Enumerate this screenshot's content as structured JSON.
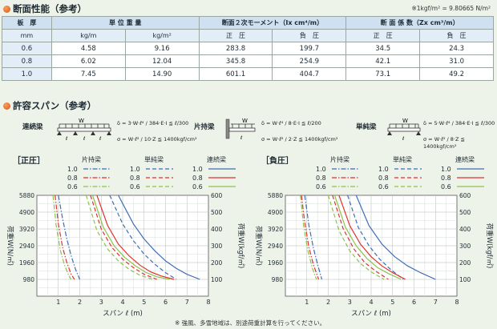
{
  "section1": {
    "title": "断面性能（参考）",
    "note": "※1kgf/m² = 9.80665 N/m²"
  },
  "table": {
    "headers": [
      "板　厚",
      "単 位 重 量",
      "断面２次モーメント（Ix cm⁴/m）",
      "断 面 係 数（Zx cm³/m）"
    ],
    "units": [
      "mm",
      "kg/m",
      "kg/m²",
      "正　圧",
      "負　圧",
      "正　圧",
      "負　圧"
    ],
    "rows": [
      [
        "0.6",
        "4.58",
        "9.16",
        "283.8",
        "199.7",
        "34.5",
        "24.3"
      ],
      [
        "0.8",
        "6.02",
        "12.04",
        "345.8",
        "254.9",
        "42.1",
        "31.0"
      ],
      [
        "1.0",
        "7.45",
        "14.90",
        "601.1",
        "404.7",
        "73.1",
        "49.2"
      ]
    ]
  },
  "section2": {
    "title": "許容スパン（参考）"
  },
  "formulas": {
    "renzoku": {
      "label": "連続梁",
      "f1": "δ = 3·W·ℓ⁴ / 384·E·I ≦ ℓ/300",
      "f2": "σ = W·ℓ² / 10·Z ≦ 1400kgf/cm²",
      "w": "W",
      "l": "ℓ"
    },
    "katamochi": {
      "label": "片持梁",
      "f1": "δ = W·ℓ⁴ / 8·E·I ≦ ℓ/200",
      "f2": "σ = W·ℓ² / 2·Z ≦ 1400kgf/cm²",
      "w": "W",
      "l": "ℓ"
    },
    "tanjun": {
      "label": "単純梁",
      "f1": "δ = 5·W·ℓ⁴ / 384·E·I ≦ ℓ/300",
      "f2": "σ = W·ℓ² / 8·Z ≦ 1400kgf/cm²",
      "w": "W",
      "l": "ℓ"
    }
  },
  "legend": {
    "katamochi": "片持梁",
    "tanjun": "単純梁",
    "renzoku": "連続梁",
    "thicknesses": [
      "1.0",
      "0.8",
      "0.6"
    ]
  },
  "colors": {
    "t10": "#3f6db5",
    "t08": "#e03030",
    "t06": "#8bc34a",
    "axis": "#1e2a33"
  },
  "footnote": "※ 強風、多雪地域は、別途荷重計算を行ってください。",
  "chart_data": [
    {
      "type": "line",
      "title": "［正圧］",
      "xlabel": "スパン ℓ (m)",
      "ylabel_left": "荷重W(N/㎡)",
      "ylabel_right": "荷重W(kgf/㎡)",
      "xlim": [
        0,
        8
      ],
      "ylim": [
        0,
        600
      ],
      "x_ticks": [
        1,
        2,
        3,
        4,
        5,
        6,
        7,
        8
      ],
      "y_ticks_left": [
        "980",
        "1960",
        "2940",
        "3920",
        "4900",
        "5880"
      ],
      "y_ticks_right": [
        "100",
        "200",
        "300",
        "400",
        "500",
        "600"
      ],
      "series": [
        {
          "name": "片持梁 1.0",
          "style": "dashdot",
          "color": "#3f6db5",
          "x": [
            1.0,
            1.2,
            1.4,
            1.6,
            1.8,
            2.0
          ],
          "y": [
            600,
            460,
            340,
            240,
            160,
            100
          ]
        },
        {
          "name": "片持梁 0.8",
          "style": "dashdot",
          "color": "#e03030",
          "x": [
            0.85,
            1.0,
            1.2,
            1.4,
            1.6,
            1.75
          ],
          "y": [
            600,
            430,
            290,
            200,
            130,
            100
          ]
        },
        {
          "name": "片持梁 0.6",
          "style": "dashdot",
          "color": "#8bc34a",
          "x": [
            0.75,
            0.9,
            1.1,
            1.3,
            1.5,
            1.6
          ],
          "y": [
            600,
            420,
            270,
            180,
            120,
            100
          ]
        },
        {
          "name": "単純梁 1.0",
          "style": "dashed",
          "color": "#3f6db5",
          "x": [
            3.4,
            4.0,
            4.5,
            5.0,
            5.5,
            6.0,
            6.5
          ],
          "y": [
            600,
            430,
            330,
            250,
            190,
            140,
            100
          ]
        },
        {
          "name": "単純梁 0.8",
          "style": "dashed",
          "color": "#e03030",
          "x": [
            2.5,
            3.0,
            3.5,
            4.0,
            4.5,
            5.0,
            5.6
          ],
          "y": [
            600,
            400,
            290,
            220,
            170,
            130,
            100
          ]
        },
        {
          "name": "単純梁 0.6",
          "style": "dashed",
          "color": "#8bc34a",
          "x": [
            2.3,
            2.8,
            3.3,
            3.8,
            4.3,
            4.8,
            5.4
          ],
          "y": [
            600,
            390,
            280,
            210,
            160,
            125,
            100
          ]
        },
        {
          "name": "連続梁 1.0",
          "style": "solid",
          "color": "#3f6db5",
          "x": [
            3.8,
            4.5,
            5.0,
            5.5,
            6.0,
            6.5,
            7.0,
            7.6
          ],
          "y": [
            600,
            430,
            340,
            270,
            210,
            165,
            130,
            100
          ]
        },
        {
          "name": "連続梁 0.8",
          "style": "solid",
          "color": "#e03030",
          "x": [
            2.8,
            3.3,
            3.8,
            4.3,
            4.8,
            5.3,
            5.8,
            6.4
          ],
          "y": [
            600,
            420,
            310,
            240,
            185,
            145,
            120,
            100
          ]
        },
        {
          "name": "連続梁 0.6",
          "style": "solid",
          "color": "#8bc34a",
          "x": [
            2.6,
            3.1,
            3.6,
            4.1,
            4.6,
            5.1,
            5.6,
            6.2
          ],
          "y": [
            600,
            410,
            300,
            230,
            180,
            140,
            115,
            100
          ]
        }
      ]
    },
    {
      "type": "line",
      "title": "［負圧］",
      "xlabel": "スパン ℓ (m)",
      "ylabel_left": "荷重W(N/㎡)",
      "ylabel_right": "荷重W(kgf/㎡)",
      "xlim": [
        0,
        8
      ],
      "ylim": [
        0,
        600
      ],
      "x_ticks": [
        1,
        2,
        3,
        4,
        5,
        6,
        7,
        8
      ],
      "y_ticks_left": [
        "980",
        "1960",
        "2940",
        "3920",
        "4900",
        "5880"
      ],
      "y_ticks_right": [
        "100",
        "200",
        "300",
        "400",
        "500",
        "600"
      ],
      "series": [
        {
          "name": "片持梁 1.0",
          "style": "dashdot",
          "color": "#3f6db5",
          "x": [
            0.9,
            1.1,
            1.3,
            1.5,
            1.7
          ],
          "y": [
            600,
            420,
            290,
            190,
            100
          ]
        },
        {
          "name": "片持梁 0.8",
          "style": "dashdot",
          "color": "#e03030",
          "x": [
            0.75,
            0.9,
            1.1,
            1.3,
            1.55
          ],
          "y": [
            600,
            440,
            290,
            190,
            100
          ]
        },
        {
          "name": "片持梁 0.6",
          "style": "dashdot",
          "color": "#8bc34a",
          "x": [
            0.7,
            0.85,
            1.05,
            1.25,
            1.45
          ],
          "y": [
            600,
            420,
            270,
            170,
            100
          ]
        },
        {
          "name": "単純梁 1.0",
          "style": "dashed",
          "color": "#3f6db5",
          "x": [
            2.9,
            3.4,
            3.9,
            4.4,
            4.9,
            5.5
          ],
          "y": [
            600,
            410,
            300,
            220,
            160,
            100
          ]
        },
        {
          "name": "単純梁 0.8",
          "style": "dashed",
          "color": "#e03030",
          "x": [
            2.2,
            2.7,
            3.2,
            3.7,
            4.2,
            4.8
          ],
          "y": [
            600,
            400,
            280,
            200,
            150,
            100
          ]
        },
        {
          "name": "単純梁 0.6",
          "style": "dashed",
          "color": "#8bc34a",
          "x": [
            2.0,
            2.5,
            3.0,
            3.5,
            4.0,
            4.6
          ],
          "y": [
            600,
            390,
            270,
            195,
            145,
            100
          ]
        },
        {
          "name": "連続梁 1.0",
          "style": "solid",
          "color": "#3f6db5",
          "x": [
            3.3,
            3.9,
            4.5,
            5.1,
            5.7,
            6.3,
            7.0
          ],
          "y": [
            600,
            420,
            310,
            235,
            180,
            140,
            100
          ]
        },
        {
          "name": "連続梁 0.8",
          "style": "solid",
          "color": "#e03030",
          "x": [
            2.5,
            3.0,
            3.5,
            4.0,
            4.5,
            5.0,
            5.6
          ],
          "y": [
            600,
            420,
            310,
            235,
            180,
            140,
            100
          ]
        },
        {
          "name": "連続梁 0.6",
          "style": "solid",
          "color": "#8bc34a",
          "x": [
            2.3,
            2.8,
            3.3,
            3.8,
            4.3,
            4.8,
            5.4
          ],
          "y": [
            600,
            410,
            300,
            225,
            170,
            135,
            100
          ]
        }
      ]
    }
  ]
}
